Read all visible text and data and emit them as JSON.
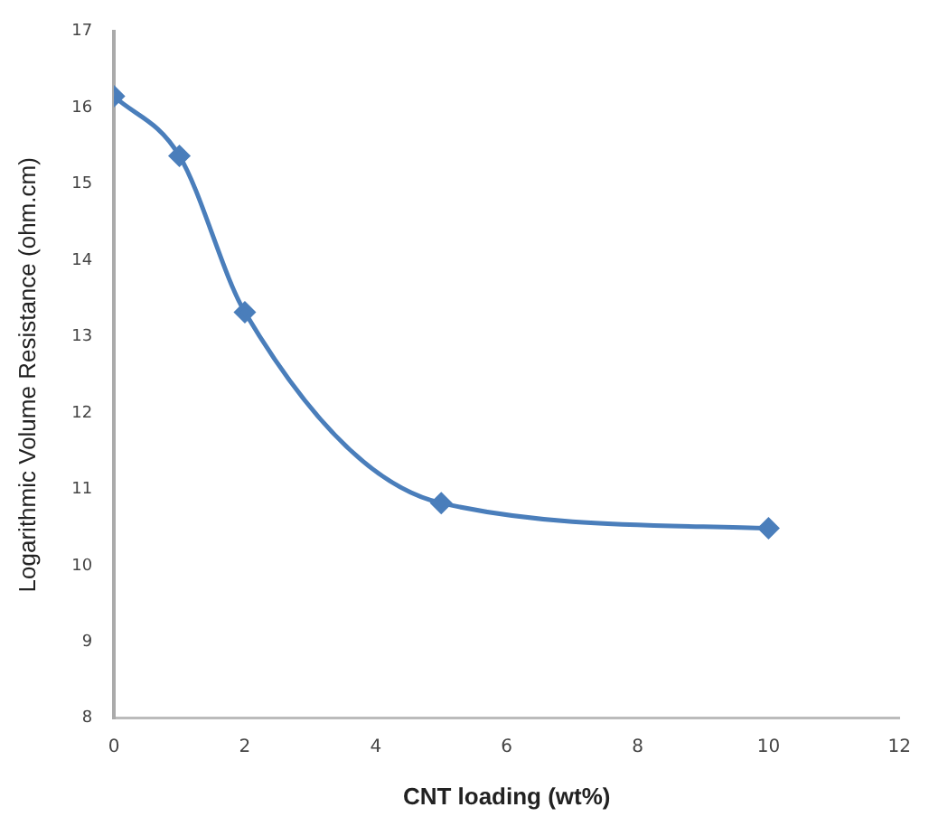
{
  "chart_data": {
    "type": "line",
    "xlabel": "CNT loading (wt%)",
    "ylabel": "Logarithmic Volume Resistance (ohm.cm)",
    "x": [
      0,
      1,
      2,
      5,
      10
    ],
    "series": [
      {
        "color": "#4a7ebb",
        "values": [
          16.15,
          15.37,
          13.32,
          10.82,
          10.49
        ]
      }
    ],
    "xlim": [
      0,
      12
    ],
    "xticks": [
      0,
      2,
      4,
      6,
      8,
      10,
      12
    ],
    "ylim": [
      8,
      17
    ],
    "yticks": [
      8,
      9,
      10,
      11,
      12,
      13,
      14,
      15,
      16,
      17
    ],
    "grid": false,
    "legend": false,
    "marker": "diamond",
    "line_style": "solid"
  }
}
